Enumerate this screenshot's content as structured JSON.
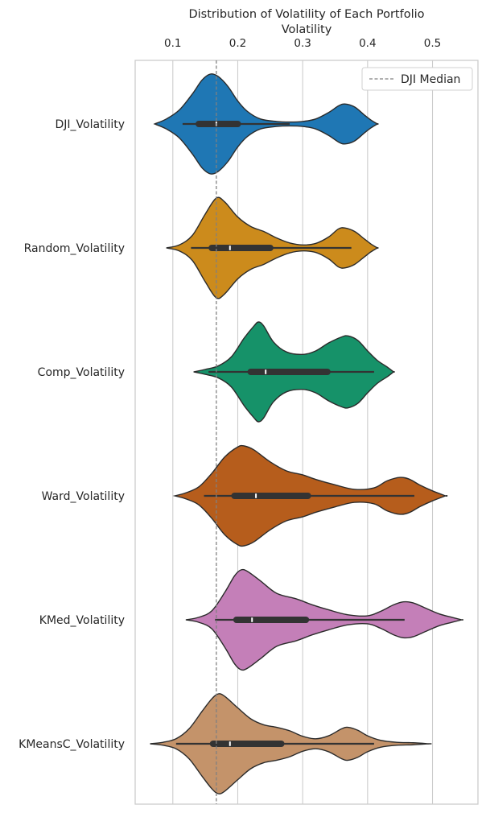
{
  "chart_data": {
    "type": "violin",
    "title": "Distribution of Volatility of Each Portfolio",
    "xlabel": "Volatility",
    "ylabel": "",
    "x_axis_position": "top",
    "xlim": [
      0.042,
      0.57
    ],
    "xticks": [
      0.1,
      0.2,
      0.3,
      0.4,
      0.5
    ],
    "xtick_labels": [
      "0.1",
      "0.2",
      "0.3",
      "0.4",
      "0.5"
    ],
    "grid": "vertical",
    "legend": {
      "position": "top-right",
      "entries": [
        "DJI Median"
      ]
    },
    "reference_line": {
      "name": "DJI Median",
      "x": 0.167,
      "style": "dashed",
      "color": "#808080"
    },
    "categories": [
      "DJI_Volatility",
      "Random_Volatility",
      "Comp_Volatility",
      "Ward_Volatility",
      "KMed_Volatility",
      "KMeansC_Volatility"
    ],
    "series": [
      {
        "category": "DJI_Volatility",
        "color": "#1f77b4",
        "range": [
          0.072,
          0.415
        ],
        "box": {
          "whisker_low": 0.115,
          "q1": 0.14,
          "median": 0.167,
          "q3": 0.2,
          "whisker_high": 0.28
        },
        "density": [
          [
            0.072,
            0.0
          ],
          [
            0.09,
            0.1
          ],
          [
            0.11,
            0.28
          ],
          [
            0.13,
            0.6
          ],
          [
            0.145,
            0.88
          ],
          [
            0.158,
            1.0
          ],
          [
            0.17,
            0.95
          ],
          [
            0.185,
            0.75
          ],
          [
            0.2,
            0.46
          ],
          [
            0.215,
            0.25
          ],
          [
            0.235,
            0.1
          ],
          [
            0.26,
            0.05
          ],
          [
            0.28,
            0.04
          ],
          [
            0.3,
            0.05
          ],
          [
            0.32,
            0.1
          ],
          [
            0.34,
            0.23
          ],
          [
            0.355,
            0.36
          ],
          [
            0.365,
            0.4
          ],
          [
            0.38,
            0.34
          ],
          [
            0.395,
            0.18
          ],
          [
            0.405,
            0.08
          ],
          [
            0.415,
            0.0
          ]
        ]
      },
      {
        "category": "Random_Volatility",
        "color": "#cc8b1c",
        "range": [
          0.09,
          0.415
        ],
        "box": {
          "whisker_low": 0.128,
          "q1": 0.16,
          "median": 0.188,
          "q3": 0.25,
          "whisker_high": 0.375
        },
        "density": [
          [
            0.09,
            0.0
          ],
          [
            0.11,
            0.06
          ],
          [
            0.13,
            0.25
          ],
          [
            0.15,
            0.68
          ],
          [
            0.167,
            1.0
          ],
          [
            0.18,
            0.92
          ],
          [
            0.2,
            0.62
          ],
          [
            0.22,
            0.43
          ],
          [
            0.24,
            0.33
          ],
          [
            0.26,
            0.2
          ],
          [
            0.28,
            0.1
          ],
          [
            0.3,
            0.06
          ],
          [
            0.32,
            0.09
          ],
          [
            0.34,
            0.22
          ],
          [
            0.355,
            0.38
          ],
          [
            0.365,
            0.4
          ],
          [
            0.38,
            0.33
          ],
          [
            0.395,
            0.18
          ],
          [
            0.405,
            0.08
          ],
          [
            0.415,
            0.0
          ]
        ]
      },
      {
        "category": "Comp_Volatility",
        "color": "#169269",
        "range": [
          0.132,
          0.44
        ],
        "box": {
          "whisker_low": 0.155,
          "q1": 0.22,
          "median": 0.243,
          "q3": 0.338,
          "whisker_high": 0.41
        },
        "density": [
          [
            0.132,
            0.0
          ],
          [
            0.15,
            0.05
          ],
          [
            0.17,
            0.12
          ],
          [
            0.19,
            0.3
          ],
          [
            0.21,
            0.68
          ],
          [
            0.225,
            0.92
          ],
          [
            0.232,
            1.0
          ],
          [
            0.24,
            0.92
          ],
          [
            0.255,
            0.6
          ],
          [
            0.275,
            0.4
          ],
          [
            0.3,
            0.35
          ],
          [
            0.32,
            0.42
          ],
          [
            0.34,
            0.58
          ],
          [
            0.36,
            0.7
          ],
          [
            0.37,
            0.72
          ],
          [
            0.385,
            0.63
          ],
          [
            0.4,
            0.42
          ],
          [
            0.415,
            0.23
          ],
          [
            0.43,
            0.1
          ],
          [
            0.44,
            0.0
          ]
        ]
      },
      {
        "category": "Ward_Volatility",
        "color": "#b65d1c",
        "range": [
          0.103,
          0.52
        ],
        "box": {
          "whisker_low": 0.148,
          "q1": 0.195,
          "median": 0.228,
          "q3": 0.308,
          "whisker_high": 0.472
        },
        "density": [
          [
            0.103,
            0.0
          ],
          [
            0.12,
            0.06
          ],
          [
            0.14,
            0.18
          ],
          [
            0.16,
            0.45
          ],
          [
            0.18,
            0.78
          ],
          [
            0.2,
            0.98
          ],
          [
            0.21,
            1.0
          ],
          [
            0.225,
            0.92
          ],
          [
            0.25,
            0.68
          ],
          [
            0.275,
            0.5
          ],
          [
            0.3,
            0.42
          ],
          [
            0.32,
            0.33
          ],
          [
            0.35,
            0.22
          ],
          [
            0.38,
            0.13
          ],
          [
            0.41,
            0.16
          ],
          [
            0.43,
            0.3
          ],
          [
            0.45,
            0.37
          ],
          [
            0.465,
            0.33
          ],
          [
            0.48,
            0.22
          ],
          [
            0.5,
            0.1
          ],
          [
            0.52,
            0.0
          ]
        ]
      },
      {
        "category": "KMed_Volatility",
        "color": "#c47fb8",
        "range": [
          0.12,
          0.545
        ],
        "box": {
          "whisker_low": 0.165,
          "q1": 0.198,
          "median": 0.222,
          "q3": 0.305,
          "whisker_high": 0.457
        },
        "density": [
          [
            0.12,
            0.0
          ],
          [
            0.14,
            0.05
          ],
          [
            0.16,
            0.18
          ],
          [
            0.18,
            0.55
          ],
          [
            0.195,
            0.88
          ],
          [
            0.205,
            1.0
          ],
          [
            0.215,
            0.97
          ],
          [
            0.235,
            0.78
          ],
          [
            0.26,
            0.53
          ],
          [
            0.29,
            0.42
          ],
          [
            0.315,
            0.3
          ],
          [
            0.34,
            0.2
          ],
          [
            0.37,
            0.1
          ],
          [
            0.4,
            0.08
          ],
          [
            0.42,
            0.17
          ],
          [
            0.44,
            0.3
          ],
          [
            0.455,
            0.36
          ],
          [
            0.47,
            0.34
          ],
          [
            0.49,
            0.23
          ],
          [
            0.51,
            0.12
          ],
          [
            0.53,
            0.05
          ],
          [
            0.545,
            0.0
          ]
        ]
      },
      {
        "category": "KMeansC_Volatility",
        "color": "#c4936a",
        "range": [
          0.065,
          0.495
        ],
        "box": {
          "whisker_low": 0.105,
          "q1": 0.162,
          "median": 0.188,
          "q3": 0.267,
          "whisker_high": 0.41
        },
        "density": [
          [
            0.065,
            0.0
          ],
          [
            0.085,
            0.03
          ],
          [
            0.105,
            0.1
          ],
          [
            0.125,
            0.3
          ],
          [
            0.145,
            0.65
          ],
          [
            0.16,
            0.9
          ],
          [
            0.17,
            1.0
          ],
          [
            0.18,
            0.95
          ],
          [
            0.2,
            0.72
          ],
          [
            0.22,
            0.5
          ],
          [
            0.24,
            0.38
          ],
          [
            0.26,
            0.33
          ],
          [
            0.28,
            0.26
          ],
          [
            0.3,
            0.15
          ],
          [
            0.32,
            0.1
          ],
          [
            0.34,
            0.16
          ],
          [
            0.36,
            0.3
          ],
          [
            0.37,
            0.33
          ],
          [
            0.385,
            0.27
          ],
          [
            0.4,
            0.16
          ],
          [
            0.42,
            0.07
          ],
          [
            0.445,
            0.03
          ],
          [
            0.47,
            0.02
          ],
          [
            0.495,
            0.0
          ]
        ]
      }
    ]
  }
}
